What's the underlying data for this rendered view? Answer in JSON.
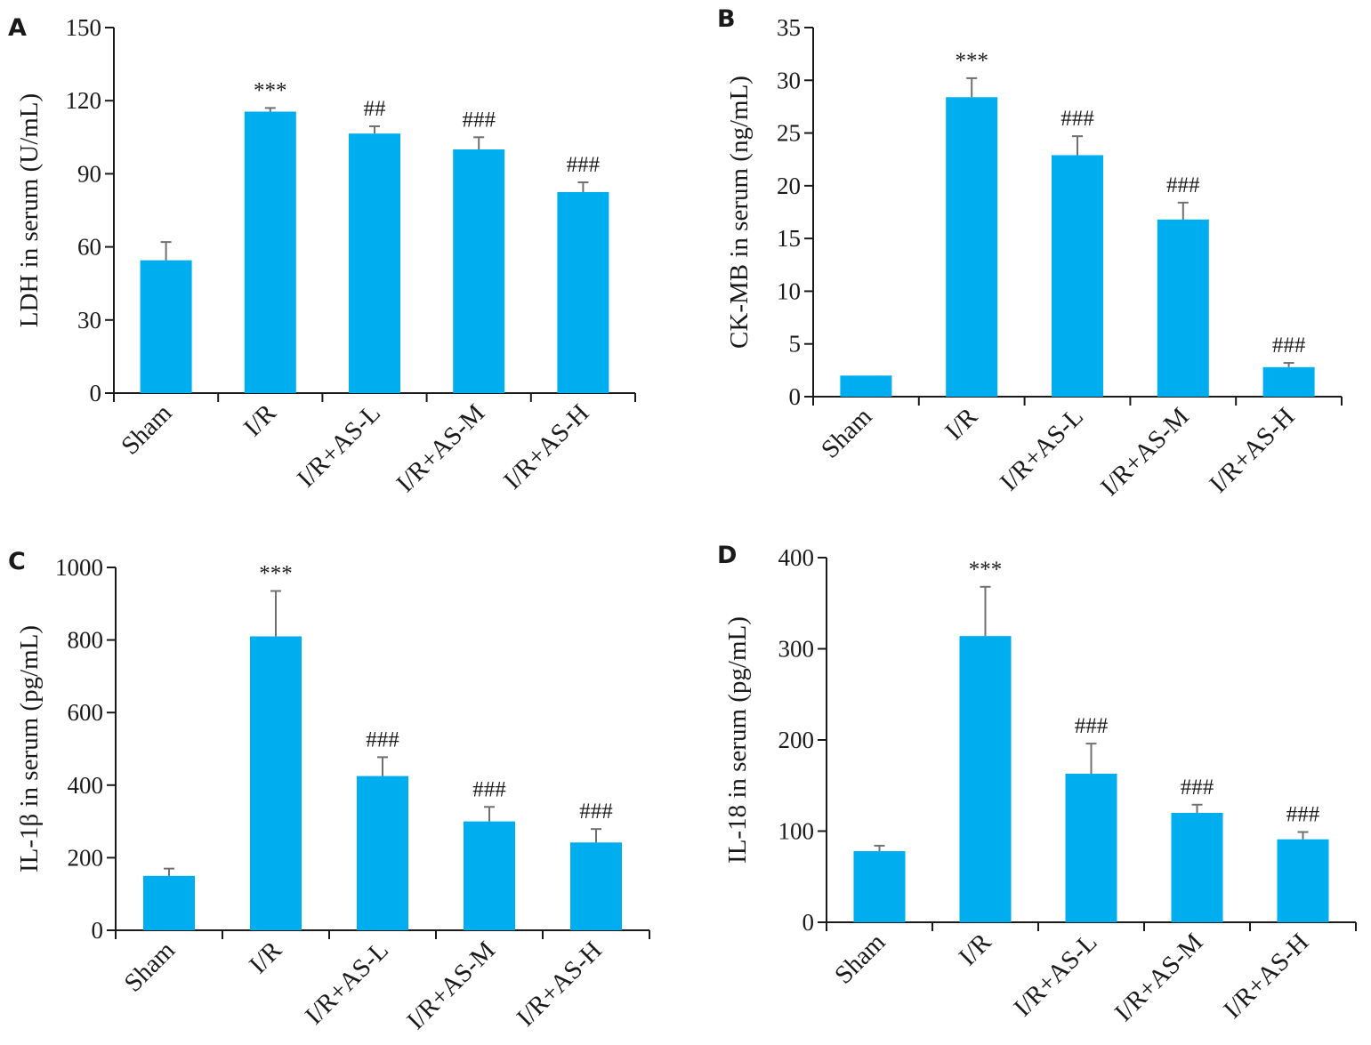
{
  "chart_data": [
    {
      "panel": "A",
      "type": "bar",
      "ylabel": "LDH in serum (U/mL)",
      "xlabel": "",
      "ylim": [
        0,
        150
      ],
      "yticks": [
        "0",
        "30",
        "60",
        "90",
        "120",
        "150"
      ],
      "categories": [
        "Sham",
        "I/R",
        "I/R+AS-L",
        "I/R+AS-M",
        "I/R+AS-H"
      ],
      "values": [
        54.5,
        115.5,
        106.5,
        100,
        82.5
      ],
      "errors": [
        7.5,
        1.5,
        3,
        5,
        4
      ],
      "significance": [
        "",
        "***",
        "##",
        "###",
        "###"
      ],
      "bar_color": "#00AEEF"
    },
    {
      "panel": "B",
      "type": "bar",
      "ylabel": "CK-MB in serum (ng/mL)",
      "xlabel": "",
      "ylim": [
        0,
        35
      ],
      "yticks": [
        "0",
        "5",
        "10",
        "15",
        "20",
        "25",
        "30",
        "35"
      ],
      "categories": [
        "Sham",
        "I/R",
        "I/R+AS-L",
        "I/R+AS-M",
        "I/R+AS-H"
      ],
      "values": [
        2,
        28.4,
        22.9,
        16.8,
        2.8
      ],
      "errors": [
        0,
        1.8,
        1.8,
        1.6,
        0.4
      ],
      "significance": [
        "",
        "***",
        "###",
        "###",
        "###"
      ],
      "bar_color": "#00AEEF"
    },
    {
      "panel": "C",
      "type": "bar",
      "ylabel": "IL-1β in serum (pg/mL)",
      "xlabel": "",
      "ylim": [
        0,
        1000
      ],
      "yticks": [
        "0",
        "200",
        "400",
        "600",
        "800",
        "1000"
      ],
      "categories": [
        "Sham",
        "I/R",
        "I/R+AS-L",
        "I/R+AS-M",
        "I/R+AS-H"
      ],
      "values": [
        150,
        810,
        425,
        300,
        242
      ],
      "errors": [
        20,
        125,
        52,
        40,
        37
      ],
      "significance": [
        "",
        "***",
        "###",
        "###",
        "###"
      ],
      "bar_color": "#00AEEF"
    },
    {
      "panel": "D",
      "type": "bar",
      "ylabel": "IL-18 in serum (pg/mL)",
      "xlabel": "",
      "ylim": [
        0,
        400
      ],
      "yticks": [
        "0",
        "100",
        "200",
        "300",
        "400"
      ],
      "categories": [
        "Sham",
        "I/R",
        "I/R+AS-L",
        "I/R+AS-M",
        "I/R+AS-H"
      ],
      "values": [
        78,
        314,
        163,
        120,
        91
      ],
      "errors": [
        6,
        54,
        33,
        9,
        8
      ],
      "significance": [
        "",
        "***",
        "###",
        "###",
        "###"
      ],
      "bar_color": "#00AEEF"
    }
  ]
}
